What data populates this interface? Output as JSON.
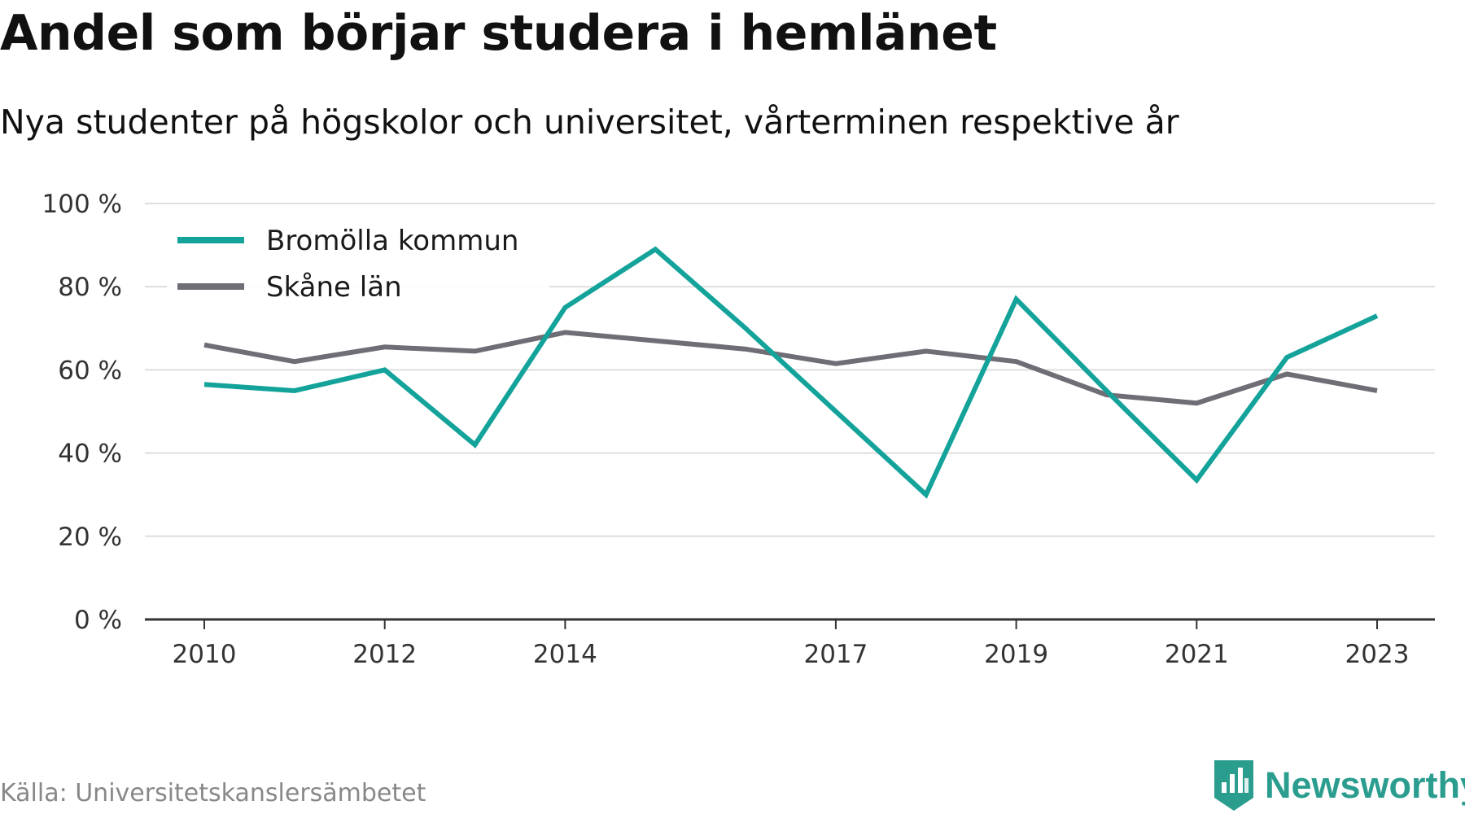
{
  "header": {
    "title": "Andel som börjar studera i hemlänet",
    "subtitle": "Nya studenter på högskolor och universitet, vårterminen respektive år"
  },
  "footer": {
    "source": "Källa: Universitetskanslersämbetet",
    "brand": "Newsworthy",
    "brand_icon": "newsworthy-logo-icon",
    "brand_color": "#2a9d8f"
  },
  "chart_data": {
    "type": "line",
    "x": [
      2010,
      2011,
      2012,
      2013,
      2014,
      2015,
      2016,
      2017,
      2018,
      2019,
      2020,
      2021,
      2022,
      2023
    ],
    "x_tick_labels": [
      "2010",
      "2012",
      "2014",
      "2017",
      "2019",
      "2021",
      "2023"
    ],
    "y_tick_labels": [
      "0 %",
      "20 %",
      "40 %",
      "60 %",
      "80 %",
      "100 %"
    ],
    "y_ticks": [
      0,
      20,
      40,
      60,
      80,
      100
    ],
    "ylim": [
      0,
      100
    ],
    "grid": true,
    "legend_position": "top-left",
    "series": [
      {
        "name": "Bromölla kommun",
        "color": "#14a39a",
        "values": [
          56.5,
          55,
          60,
          42,
          75,
          89,
          70,
          50,
          30,
          77,
          55,
          33.5,
          63,
          73
        ]
      },
      {
        "name": "Skåne län",
        "color": "#6f6d75",
        "values": [
          66,
          62,
          65.5,
          64.5,
          69,
          67,
          65,
          61.5,
          64.5,
          62,
          54,
          52,
          59,
          55
        ]
      }
    ]
  }
}
